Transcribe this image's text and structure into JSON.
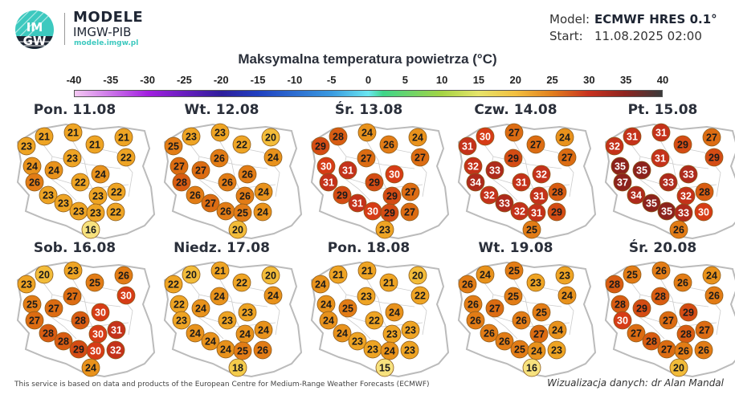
{
  "brand": {
    "name": "MODELE",
    "org": "IMGW-PIB",
    "url": "modele.imgw.pl",
    "logo_text": "IMGW"
  },
  "meta": {
    "model_label": "Model:",
    "model_value": "ECMWF HRES 0.1°",
    "start_label": "Start:",
    "start_value": "11.08.2025 02:00"
  },
  "title": "Maksymalna temperatura powietrza (°C)",
  "colorbar": {
    "ticks": [
      "-40",
      "-35",
      "-30",
      "-25",
      "-20",
      "-15",
      "-10",
      "-5",
      "0",
      "5",
      "10",
      "15",
      "20",
      "25",
      "30",
      "35",
      "40"
    ],
    "range": [
      -40,
      40
    ],
    "stops": [
      [
        -40,
        "#f4c8f2"
      ],
      [
        -30,
        "#a21fe0"
      ],
      [
        -20,
        "#2e1e9c"
      ],
      [
        -15,
        "#2040c0"
      ],
      [
        -5,
        "#3a9ae0"
      ],
      [
        0,
        "#6ae6f0"
      ],
      [
        2,
        "#3fd58a"
      ],
      [
        10,
        "#a4d444"
      ],
      [
        15,
        "#e6e46a"
      ],
      [
        20,
        "#f2c040"
      ],
      [
        25,
        "#e2801e"
      ],
      [
        30,
        "#c83220"
      ],
      [
        35,
        "#8e2420"
      ],
      [
        40,
        "#3a3a3a"
      ]
    ]
  },
  "maps": [
    {
      "title": "Pon. 11.08",
      "values": [
        23,
        21,
        21,
        21,
        21,
        24,
        24,
        23,
        22,
        26,
        22,
        24,
        23,
        23,
        23,
        23,
        22,
        23,
        22,
        16
      ]
    },
    {
      "title": "Wt. 12.08",
      "values": [
        25,
        23,
        23,
        22,
        20,
        27,
        27,
        26,
        24,
        28,
        26,
        26,
        26,
        27,
        26,
        26,
        24,
        25,
        24,
        20
      ]
    },
    {
      "title": "Śr. 13.08",
      "values": [
        29,
        28,
        24,
        26,
        24,
        30,
        31,
        27,
        27,
        31,
        29,
        30,
        29,
        31,
        30,
        29,
        27,
        29,
        27,
        23
      ]
    },
    {
      "title": "Czw. 14.08",
      "values": [
        31,
        30,
        27,
        27,
        24,
        32,
        33,
        29,
        27,
        34,
        31,
        32,
        32,
        33,
        32,
        31,
        28,
        31,
        29,
        25
      ]
    },
    {
      "title": "Pt. 15.08",
      "values": [
        32,
        31,
        31,
        29,
        27,
        35,
        35,
        31,
        29,
        37,
        33,
        33,
        34,
        35,
        35,
        32,
        28,
        33,
        30,
        26
      ]
    },
    {
      "title": "Sob. 16.08",
      "values": [
        23,
        20,
        23,
        25,
        26,
        25,
        27,
        27,
        30,
        27,
        28,
        30,
        28,
        28,
        29,
        30,
        31,
        30,
        32,
        24
      ]
    },
    {
      "title": "Niedz. 17.08",
      "values": [
        22,
        20,
        21,
        22,
        20,
        22,
        24,
        24,
        24,
        23,
        23,
        23,
        24,
        24,
        24,
        24,
        24,
        25,
        26,
        18
      ]
    },
    {
      "title": "Pon. 18.08",
      "values": [
        24,
        21,
        21,
        21,
        20,
        24,
        25,
        23,
        22,
        24,
        22,
        24,
        24,
        23,
        23,
        23,
        23,
        24,
        23,
        15
      ]
    },
    {
      "title": "Wt. 19.08",
      "values": [
        26,
        24,
        25,
        23,
        23,
        26,
        27,
        25,
        24,
        26,
        26,
        25,
        26,
        26,
        25,
        27,
        24,
        24,
        23,
        16
      ]
    },
    {
      "title": "Śr. 20.08",
      "values": [
        28,
        25,
        26,
        26,
        24,
        28,
        29,
        28,
        26,
        30,
        27,
        29,
        27,
        28,
        27,
        28,
        27,
        26,
        26,
        20
      ]
    }
  ],
  "footer": {
    "source": "This service is based on data and products of the European Centre for Medium-Range Weather Forecasts (ECMWF)",
    "credit": "Wizualizacja danych: dr Alan Mandal"
  }
}
